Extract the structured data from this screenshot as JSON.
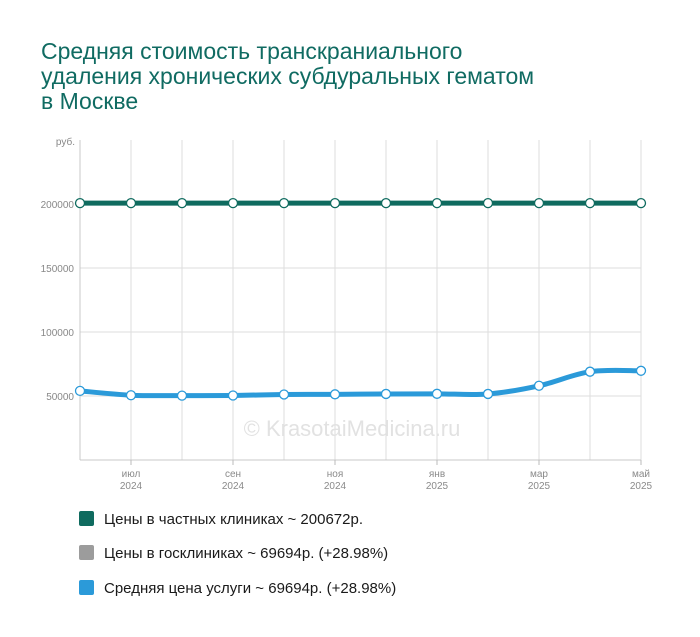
{
  "title_lines": [
    "Средняя стоимость транскраниального",
    "удаления хронических субдуральных гематом",
    "в Москве"
  ],
  "watermark": "© KrasotaiMedicina.ru",
  "chart_data": {
    "type": "line",
    "title": "Средняя стоимость транскраниального удаления хронических субдуральных гематом в Москве",
    "ylabel": "руб.",
    "ylim": [
      0,
      250000
    ],
    "y_ticks": [
      "50000",
      "100000",
      "150000",
      "200000"
    ],
    "y_tick_values": [
      50000,
      100000,
      150000,
      200000
    ],
    "grid": true,
    "legend_position": "bottom",
    "x_count": 12,
    "x_ticks": [
      {
        "index": 1,
        "month": "июл",
        "year": "2024"
      },
      {
        "index": 3,
        "month": "сен",
        "year": "2024"
      },
      {
        "index": 5,
        "month": "ноя",
        "year": "2024"
      },
      {
        "index": 7,
        "month": "янв",
        "year": "2025"
      },
      {
        "index": 9,
        "month": "мар",
        "year": "2025"
      },
      {
        "index": 11,
        "month": "май",
        "year": "2025"
      }
    ],
    "series": [
      {
        "name": "Цены в частных клиниках ~ 200672р.",
        "color": "#0f6b5f",
        "values": [
          200672,
          200672,
          200672,
          200672,
          200672,
          200672,
          200672,
          200672,
          200672,
          200672,
          200672,
          200672
        ]
      },
      {
        "name": "Средняя цена услуги ~ 69694р. (+28.98%)",
        "color": "#2b9ad9",
        "values": [
          54000,
          50600,
          50300,
          50400,
          51200,
          51300,
          51600,
          51700,
          51600,
          58000,
          69000,
          69694
        ]
      }
    ],
    "legend": [
      {
        "label": "Цены в частных клиниках ~ 200672р.",
        "color": "#0f6b5f"
      },
      {
        "label": "Цены в госклиниках ~ 69694р. (+28.98%)",
        "color": "#9c9c9c"
      },
      {
        "label": "Средняя цена услуги ~ 69694р. (+28.98%)",
        "color": "#2b9ad9"
      }
    ]
  }
}
